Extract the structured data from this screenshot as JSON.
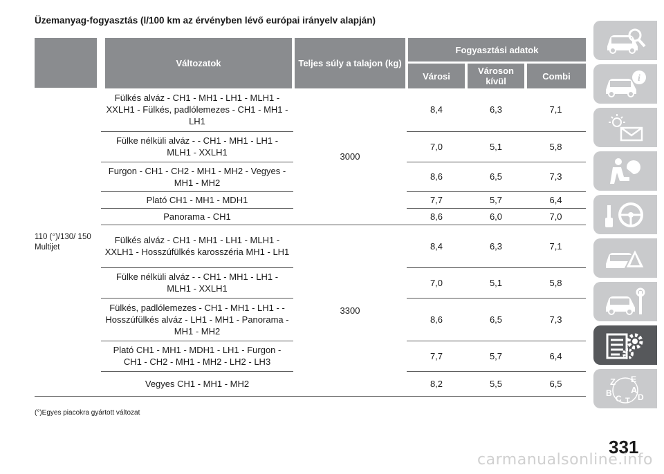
{
  "title": "Üzemanyag-fogyasztás (l/100 km az érvényben lévő európai irányelv alapján)",
  "headers": {
    "variants": "Változatok",
    "weight": "Teljes súly a talajon (kg)",
    "group": "Fogyasztási adatok",
    "urban": "Városi",
    "extra_urban": "Városon kívül",
    "combined": "Combi"
  },
  "engine": "110 (°)/130/ 150 Multijet",
  "weights": [
    "3000",
    "3300"
  ],
  "rows": [
    {
      "variant": "Fülkés alváz - CH1 - MH1 - LH1 - MLH1 - XXLH1 - Fülkés, padlólemezes - CH1 - MH1 - LH1",
      "urban": "8,4",
      "extra": "6,3",
      "comb": "7,1"
    },
    {
      "variant": "Fülke nélküli alváz - - CH1 - MH1 - LH1 - MLH1 - XXLH1",
      "urban": "7,0",
      "extra": "5,1",
      "comb": "5,8"
    },
    {
      "variant": "Furgon - CH1 - CH2 - MH1 - MH2 - Vegyes - MH1 - MH2",
      "urban": "8,6",
      "extra": "6,5",
      "comb": "7,3"
    },
    {
      "variant": "Plató CH1 - MH1 - MDH1",
      "urban": "7,7",
      "extra": "5,7",
      "comb": "6,4"
    },
    {
      "variant": "Panorama - CH1",
      "urban": "8,6",
      "extra": "6,0",
      "comb": "7,0"
    },
    {
      "variant": "Fülkés alváz - CH1 - MH1 - LH1 - MLH1 - XXLH1 - Hosszúfülkés karosszéria MH1 - LH1",
      "urban": "8,4",
      "extra": "6,3",
      "comb": "7,1"
    },
    {
      "variant": "Fülke nélküli alváz - - CH1 - MH1 - LH1 - MLH1 - XXLH1",
      "urban": "7,0",
      "extra": "5,1",
      "comb": "5,8"
    },
    {
      "variant": "Fülkés, padlólemezes - CH1 - MH1 - LH1 - - Hosszúfülkés alváz - LH1 - MH1 - Panorama - MH1 - MH2",
      "urban": "8,6",
      "extra": "6,5",
      "comb": "7,3"
    },
    {
      "variant": "Plató CH1 - MH1 - MDH1 - LH1 - Furgon - CH1 - CH2 - MH1 - MH2 - LH2 - LH3",
      "urban": "7,7",
      "extra": "5,7",
      "comb": "6,4"
    },
    {
      "variant": "Vegyes CH1 - MH1 - MH2",
      "urban": "8,2",
      "extra": "5,5",
      "comb": "6,5"
    }
  ],
  "footnote": "(°)Egyes piacokra gyártott változat",
  "page_number": "331",
  "watermark": "carmanualsonline.info",
  "sidebar_tabs": [
    {
      "icon": "car-search-icon",
      "active": false
    },
    {
      "icon": "car-info-icon",
      "active": false
    },
    {
      "icon": "warning-light-message-icon",
      "active": false
    },
    {
      "icon": "airbag-safety-icon",
      "active": false
    },
    {
      "icon": "steering-wheel-key-icon",
      "active": false
    },
    {
      "icon": "car-breakdown-warning-icon",
      "active": false
    },
    {
      "icon": "car-maintenance-tools-icon",
      "active": false
    },
    {
      "icon": "technical-data-gear-icon",
      "active": true
    },
    {
      "icon": "alphabetical-index-icon",
      "active": false
    }
  ],
  "colors": {
    "header_bg": "#8a8c8f",
    "tab_bg": "#c9cacc",
    "tab_active": "#56585b"
  }
}
